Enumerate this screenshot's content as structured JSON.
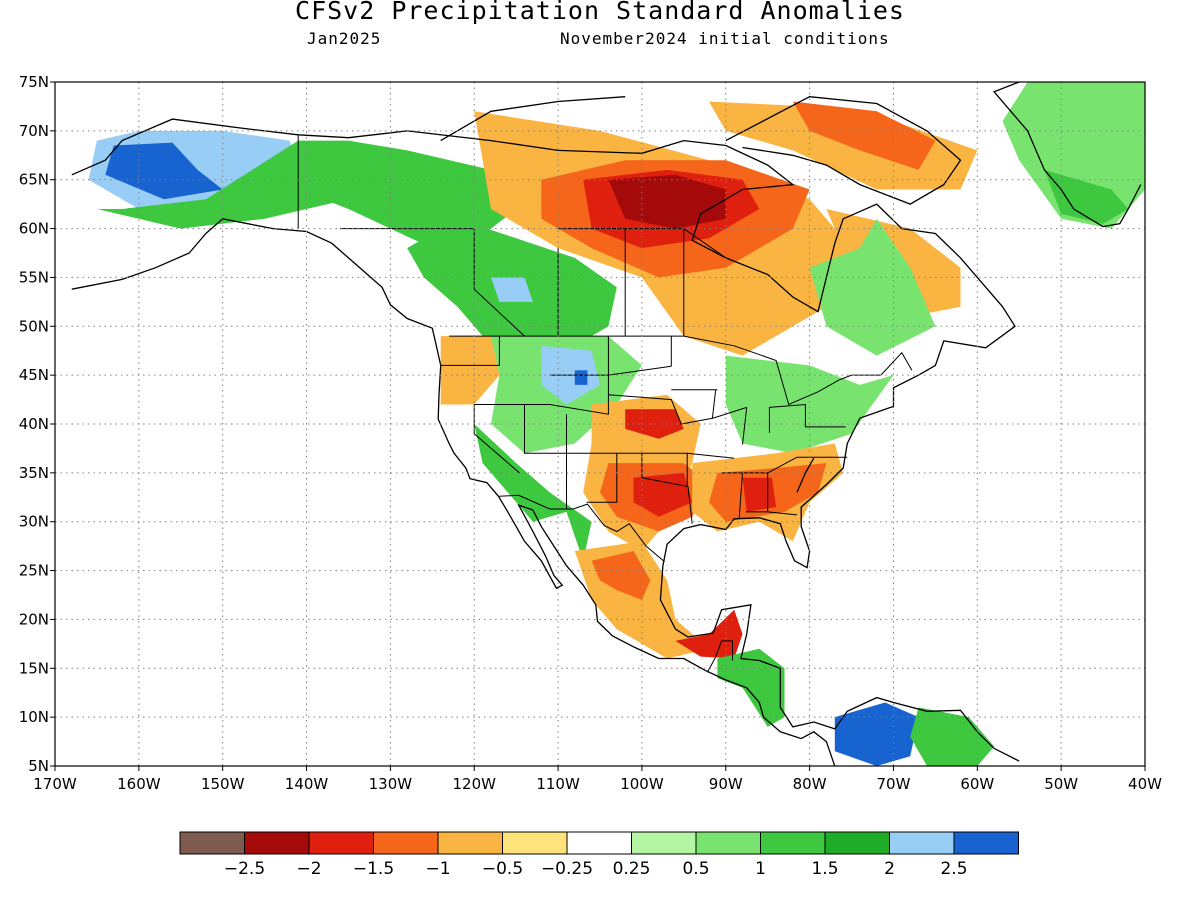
{
  "header": {
    "title": "CFSv2 Precipitation Standard Anomalies",
    "valid_month": "Jan2025",
    "init_conditions": "November2024 initial conditions"
  },
  "axes": {
    "lon_ticks": [
      "170W",
      "160W",
      "150W",
      "140W",
      "130W",
      "120W",
      "110W",
      "100W",
      "90W",
      "80W",
      "70W",
      "60W",
      "50W",
      "40W"
    ],
    "lat_ticks": [
      "75N",
      "70N",
      "65N",
      "60N",
      "55N",
      "50N",
      "45N",
      "40N",
      "35N",
      "30N",
      "25N",
      "20N",
      "15N",
      "10N",
      "5N"
    ],
    "lon_range": [
      -170,
      -40
    ],
    "lat_range": [
      5,
      75
    ],
    "grid": "dotted"
  },
  "colorbar": {
    "colors": [
      "#7f5a4f",
      "#a50a0a",
      "#e0200f",
      "#f5651a",
      "#f9b441",
      "#fde37a",
      "#ffffff",
      "#b4f5a4",
      "#78e46f",
      "#3dc83f",
      "#1fac28",
      "#98cdf5",
      "#1763d0"
    ],
    "labels": [
      "−2.5",
      "−2",
      "−1.5",
      "−1",
      "−0.5",
      "−0.25",
      "0.25",
      "0.5",
      "1",
      "1.5",
      "2",
      "2.5"
    ]
  },
  "anomaly_regions": [
    {
      "name": "alaska-wet",
      "color": "#98cdf5",
      "pts": [
        [
          -165,
          69
        ],
        [
          -160,
          70
        ],
        [
          -150,
          70
        ],
        [
          -142,
          69
        ],
        [
          -141,
          66
        ],
        [
          -145,
          63
        ],
        [
          -152,
          61
        ],
        [
          -160,
          62
        ],
        [
          -166,
          65
        ]
      ]
    },
    {
      "name": "alaska-very-wet",
      "color": "#1763d0",
      "pts": [
        [
          -163,
          68.5
        ],
        [
          -156,
          68.8
        ],
        [
          -153,
          66
        ],
        [
          -150,
          64
        ],
        [
          -157,
          63
        ],
        [
          -164,
          65.5
        ]
      ]
    },
    {
      "name": "alaska-green",
      "color": "#3dc83f",
      "pts": [
        [
          -165,
          62
        ],
        [
          -155,
          60
        ],
        [
          -145,
          61
        ],
        [
          -140,
          62
        ],
        [
          -135,
          63
        ],
        [
          -138,
          67
        ],
        [
          -141,
          69
        ],
        [
          -152,
          63
        ],
        [
          -162,
          62
        ]
      ]
    },
    {
      "name": "yukon-nwt-green",
      "color": "#3dc83f",
      "pts": [
        [
          -141,
          69
        ],
        [
          -135,
          69
        ],
        [
          -128,
          68
        ],
        [
          -118,
          66
        ],
        [
          -112,
          64
        ],
        [
          -118,
          60
        ],
        [
          -125,
          58
        ],
        [
          -130,
          60
        ],
        [
          -135,
          62
        ],
        [
          -141,
          64
        ]
      ]
    },
    {
      "name": "bc-alberta-green",
      "color": "#3dc83f",
      "pts": [
        [
          -128,
          58
        ],
        [
          -122,
          61
        ],
        [
          -115,
          59
        ],
        [
          -108,
          57
        ],
        [
          -103,
          54
        ],
        [
          -104,
          50
        ],
        [
          -110,
          47
        ],
        [
          -118,
          48
        ],
        [
          -122,
          52
        ],
        [
          -126,
          55
        ]
      ]
    },
    {
      "name": "alberta-wet",
      "color": "#98cdf5",
      "pts": [
        [
          -118,
          55
        ],
        [
          -114,
          55
        ],
        [
          -113,
          52.5
        ],
        [
          -117,
          52.5
        ]
      ]
    },
    {
      "name": "montana-green",
      "color": "#78e46f",
      "pts": [
        [
          -118,
          49
        ],
        [
          -104,
          49
        ],
        [
          -100,
          46
        ],
        [
          -103,
          42
        ],
        [
          -108,
          38
        ],
        [
          -114,
          37
        ],
        [
          -118,
          40
        ],
        [
          -117,
          45
        ]
      ]
    },
    {
      "name": "montana-wet",
      "color": "#98cdf5",
      "pts": [
        [
          -112,
          48
        ],
        [
          -106,
          47.5
        ],
        [
          -105,
          44
        ],
        [
          -109,
          42
        ],
        [
          -112,
          44
        ]
      ]
    },
    {
      "name": "montana-very-wet",
      "color": "#1763d0",
      "pts": [
        [
          -108,
          45.5
        ],
        [
          -106.5,
          45.5
        ],
        [
          -106.5,
          44
        ],
        [
          -108,
          44
        ]
      ]
    },
    {
      "name": "pacific-nw-dry",
      "color": "#f9b441",
      "pts": [
        [
          -124,
          49
        ],
        [
          -118,
          49
        ],
        [
          -117,
          45
        ],
        [
          -120,
          42
        ],
        [
          -124,
          42
        ]
      ]
    },
    {
      "name": "southwest-green",
      "color": "#3dc83f",
      "pts": [
        [
          -120,
          40
        ],
        [
          -115,
          36
        ],
        [
          -111,
          33
        ],
        [
          -106,
          30
        ],
        [
          -107,
          26
        ],
        [
          -109,
          31
        ],
        [
          -113,
          30
        ],
        [
          -116,
          33
        ],
        [
          -119,
          36
        ]
      ]
    },
    {
      "name": "hudson-bay-dry",
      "color": "#f9b441",
      "pts": [
        [
          -120,
          72
        ],
        [
          -105,
          70
        ],
        [
          -92,
          67
        ],
        [
          -80,
          63
        ],
        [
          -75,
          58
        ],
        [
          -78,
          52
        ],
        [
          -88,
          47
        ],
        [
          -95,
          49
        ],
        [
          -100,
          55
        ],
        [
          -110,
          58
        ],
        [
          -118,
          62
        ]
      ]
    },
    {
      "name": "hudson-bay-orange",
      "color": "#f5651a",
      "pts": [
        [
          -112,
          65
        ],
        [
          -102,
          67
        ],
        [
          -90,
          67
        ],
        [
          -80,
          64
        ],
        [
          -82,
          60
        ],
        [
          -90,
          56
        ],
        [
          -98,
          55
        ],
        [
          -106,
          58
        ],
        [
          -112,
          61
        ]
      ]
    },
    {
      "name": "hudson-bay-red",
      "color": "#e0200f",
      "pts": [
        [
          -107,
          65
        ],
        [
          -97,
          66
        ],
        [
          -88,
          65
        ],
        [
          -86,
          62
        ],
        [
          -92,
          59
        ],
        [
          -100,
          58
        ],
        [
          -106,
          60
        ]
      ]
    },
    {
      "name": "hudson-bay-darkred",
      "color": "#a50a0a",
      "pts": [
        [
          -104,
          65
        ],
        [
          -96,
          65.5
        ],
        [
          -90,
          64
        ],
        [
          -90,
          61
        ],
        [
          -96,
          60
        ],
        [
          -102,
          61
        ]
      ]
    },
    {
      "name": "baffin-dry",
      "color": "#f9b441",
      "pts": [
        [
          -92,
          73
        ],
        [
          -80,
          72.5
        ],
        [
          -70,
          71
        ],
        [
          -60,
          68
        ],
        [
          -62,
          64
        ],
        [
          -72,
          64
        ],
        [
          -82,
          68
        ],
        [
          -90,
          70
        ]
      ]
    },
    {
      "name": "baffin-orange",
      "color": "#f5651a",
      "pts": [
        [
          -82,
          73
        ],
        [
          -72,
          72
        ],
        [
          -65,
          69
        ],
        [
          -67,
          66
        ],
        [
          -74,
          68
        ],
        [
          -80,
          70
        ]
      ]
    },
    {
      "name": "labrador-dry",
      "color": "#f9b441",
      "pts": [
        [
          -78,
          62
        ],
        [
          -68,
          60
        ],
        [
          -62,
          56
        ],
        [
          -62,
          52
        ],
        [
          -68,
          51
        ],
        [
          -72,
          55
        ],
        [
          -76,
          58
        ]
      ]
    },
    {
      "name": "quebec-green",
      "color": "#78e46f",
      "pts": [
        [
          -80,
          56
        ],
        [
          -74,
          58
        ],
        [
          -72,
          61
        ],
        [
          -68,
          56
        ],
        [
          -65,
          50
        ],
        [
          -72,
          47
        ],
        [
          -78,
          50
        ]
      ]
    },
    {
      "name": "great-lakes-green",
      "color": "#78e46f",
      "pts": [
        [
          -90,
          47
        ],
        [
          -80,
          46
        ],
        [
          -74,
          44
        ],
        [
          -70,
          45
        ],
        [
          -75,
          39
        ],
        [
          -82,
          37
        ],
        [
          -88,
          38
        ],
        [
          -90,
          42
        ]
      ]
    },
    {
      "name": "plains-dry",
      "color": "#f9b441",
      "pts": [
        [
          -106,
          42
        ],
        [
          -97,
          43
        ],
        [
          -93,
          40
        ],
        [
          -94,
          36
        ],
        [
          -97,
          30
        ],
        [
          -100,
          27
        ],
        [
          -104,
          29
        ],
        [
          -107,
          33
        ],
        [
          -106,
          38
        ]
      ]
    },
    {
      "name": "kansas-red",
      "color": "#e0200f",
      "pts": [
        [
          -102,
          41.5
        ],
        [
          -96,
          41.5
        ],
        [
          -95,
          39.5
        ],
        [
          -98,
          38.5
        ],
        [
          -102,
          39.5
        ]
      ]
    },
    {
      "name": "texas-orange",
      "color": "#f5651a",
      "pts": [
        [
          -104,
          36
        ],
        [
          -95,
          36
        ],
        [
          -92,
          34
        ],
        [
          -94,
          30.5
        ],
        [
          -98,
          29
        ],
        [
          -103,
          30.5
        ],
        [
          -105,
          33
        ]
      ]
    },
    {
      "name": "texas-red",
      "color": "#e0200f",
      "pts": [
        [
          -101,
          34.5
        ],
        [
          -95,
          35
        ],
        [
          -94,
          32
        ],
        [
          -98,
          30.5
        ],
        [
          -101,
          32
        ]
      ]
    },
    {
      "name": "southeast-dry",
      "color": "#f9b441",
      "pts": [
        [
          -94,
          36
        ],
        [
          -84,
          37
        ],
        [
          -77,
          38
        ],
        [
          -76,
          35
        ],
        [
          -80,
          32
        ],
        [
          -82,
          28
        ],
        [
          -86,
          30
        ],
        [
          -91,
          29
        ],
        [
          -94,
          31
        ]
      ]
    },
    {
      "name": "southeast-orange",
      "color": "#f5651a",
      "pts": [
        [
          -91,
          35
        ],
        [
          -84,
          35.5
        ],
        [
          -78,
          36
        ],
        [
          -79,
          33
        ],
        [
          -83,
          31
        ],
        [
          -90,
          30
        ],
        [
          -92,
          32
        ]
      ]
    },
    {
      "name": "alabama-red",
      "color": "#e0200f",
      "pts": [
        [
          -88,
          34.5
        ],
        [
          -84.5,
          34.5
        ],
        [
          -84,
          31.5
        ],
        [
          -87.5,
          31
        ]
      ]
    },
    {
      "name": "mexico-dry",
      "color": "#f9b441",
      "pts": [
        [
          -108,
          27
        ],
        [
          -100,
          28
        ],
        [
          -97,
          24
        ],
        [
          -96,
          20
        ],
        [
          -92,
          17
        ],
        [
          -97,
          16
        ],
        [
          -103,
          19
        ],
        [
          -106,
          22
        ]
      ]
    },
    {
      "name": "mexico-orange",
      "color": "#f5651a",
      "pts": [
        [
          -106,
          26
        ],
        [
          -101,
          27
        ],
        [
          -99,
          24
        ],
        [
          -100,
          22
        ],
        [
          -103,
          23
        ],
        [
          -105,
          24
        ]
      ]
    },
    {
      "name": "yucatan-red",
      "color": "#e0200f",
      "pts": [
        [
          -96,
          17.8
        ],
        [
          -92,
          18.5
        ],
        [
          -89,
          21
        ],
        [
          -88,
          18.5
        ],
        [
          -89,
          16
        ],
        [
          -93,
          16.2
        ]
      ]
    },
    {
      "name": "central-america-green",
      "color": "#3dc83f",
      "pts": [
        [
          -91,
          16
        ],
        [
          -86,
          17
        ],
        [
          -83,
          15
        ],
        [
          -83,
          10
        ],
        [
          -85,
          9
        ],
        [
          -88,
          13
        ],
        [
          -91,
          14
        ]
      ]
    },
    {
      "name": "colombia-very-wet",
      "color": "#1763d0",
      "pts": [
        [
          -77,
          10
        ],
        [
          -71,
          11.5
        ],
        [
          -67,
          10
        ],
        [
          -68,
          6
        ],
        [
          -72,
          5
        ],
        [
          -77,
          6.5
        ]
      ]
    },
    {
      "name": "venezuela-green",
      "color": "#3dc83f",
      "pts": [
        [
          -67,
          11
        ],
        [
          -61,
          10
        ],
        [
          -58,
          7
        ],
        [
          -60,
          5
        ],
        [
          -66,
          5
        ],
        [
          -68,
          8
        ]
      ]
    },
    {
      "name": "greenland-green",
      "color": "#78e46f",
      "pts": [
        [
          -54,
          75
        ],
        [
          -40,
          75
        ],
        [
          -40,
          64
        ],
        [
          -44,
          60
        ],
        [
          -50,
          61
        ],
        [
          -55,
          67
        ],
        [
          -57,
          71
        ]
      ]
    },
    {
      "name": "greenland-dark-green",
      "color": "#3dc83f",
      "pts": [
        [
          -52,
          66
        ],
        [
          -44,
          64
        ],
        [
          -42,
          62
        ],
        [
          -45,
          60.5
        ],
        [
          -50,
          61.5
        ]
      ]
    }
  ]
}
